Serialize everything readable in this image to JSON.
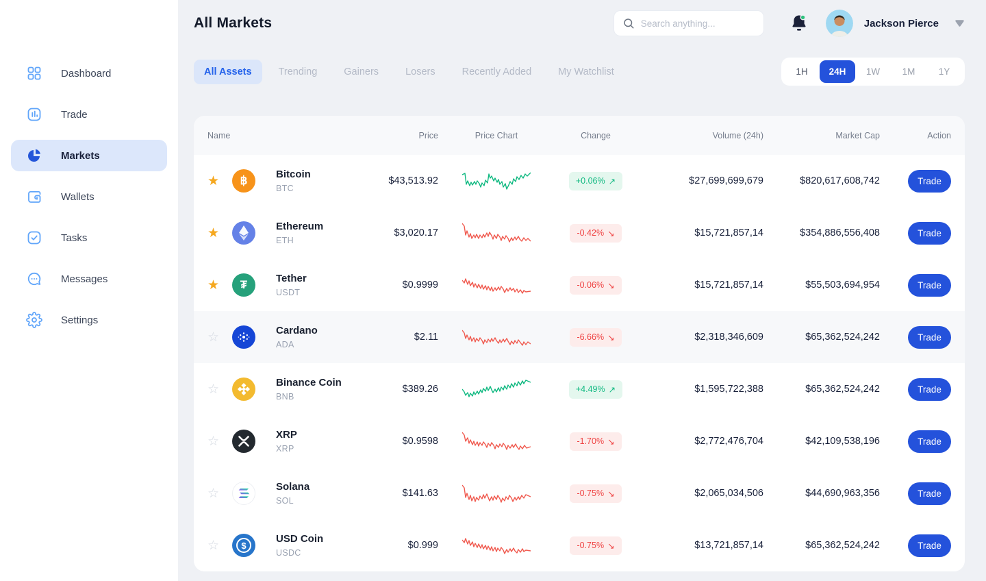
{
  "sidebar": {
    "items": [
      {
        "label": "Dashboard",
        "icon": "dashboard-icon",
        "active": false
      },
      {
        "label": "Trade",
        "icon": "trade-icon",
        "active": false
      },
      {
        "label": "Markets",
        "icon": "markets-icon",
        "active": true
      },
      {
        "label": "Wallets",
        "icon": "wallets-icon",
        "active": false
      },
      {
        "label": "Tasks",
        "icon": "tasks-icon",
        "active": false
      },
      {
        "label": "Messages",
        "icon": "messages-icon",
        "active": false
      },
      {
        "label": "Settings",
        "icon": "settings-icon",
        "active": false
      }
    ]
  },
  "header": {
    "title": "All Markets",
    "search_placeholder": "Search anything...",
    "user_name": "Jackson Pierce",
    "has_unread_notifications": true
  },
  "filters": {
    "tabs": [
      {
        "label": "All Assets",
        "active": true
      },
      {
        "label": "Trending",
        "active": false
      },
      {
        "label": "Gainers",
        "active": false
      },
      {
        "label": "Losers",
        "active": false
      },
      {
        "label": "Recently Added",
        "active": false
      },
      {
        "label": "My Watchlist",
        "active": false
      }
    ],
    "time_ranges": [
      {
        "label": "1H",
        "active": false
      },
      {
        "label": "24H",
        "active": true
      },
      {
        "label": "1W",
        "active": false
      },
      {
        "label": "1M",
        "active": false
      },
      {
        "label": "1Y",
        "active": false
      }
    ]
  },
  "table": {
    "columns": [
      "Name",
      "Price",
      "Price Chart",
      "Change",
      "Volume (24h)",
      "Market Cap",
      "Action"
    ],
    "action_label": "Trade",
    "arrow_up": "↗",
    "arrow_down": "↘",
    "rows": [
      {
        "name": "Bitcoin",
        "symbol": "BTC",
        "favorited": true,
        "highlighted": false,
        "icon": "btc",
        "price": "$43,513.92",
        "change": "+0.06%",
        "direction": "up",
        "volume": "$27,699,699,679",
        "market_cap": "$820,617,608,742",
        "spark": "0,13 4,11 6,27 8,22 11,29 13,24 15,28 18,23 20,27 22,22 25,26 27,31 29,25 32,29 34,21 37,25 39,12 41,18 43,15 46,22 48,18 51,24 53,20 55,27 58,23 60,31 63,26 65,34 68,28 70,23 73,27 75,19 78,23 80,16 83,20 86,14 89,18 92,12 95,15 100,10"
      },
      {
        "name": "Ethereum",
        "symbol": "ETH",
        "favorited": true,
        "highlighted": false,
        "icon": "eth",
        "price": "$3,020.17",
        "change": "-0.42%",
        "direction": "down",
        "volume": "$15,721,857,14",
        "market_cap": "$354,886,556,408",
        "spark": "0,8 3,12 5,25 7,19 10,28 12,23 14,30 17,25 19,29 21,24 24,30 26,25 29,29 31,24 33,28 36,22 38,27 40,21 43,26 45,31 47,25 50,30 52,24 55,28 57,33 59,27 62,31 64,26 67,30 69,35 72,29 74,33 77,28 79,32 82,27 84,31 87,34 90,29 93,33 96,30 100,34"
      },
      {
        "name": "Tether",
        "symbol": "USDT",
        "favorited": true,
        "highlighted": false,
        "icon": "usdt",
        "price": "$0.9999",
        "change": "-0.06%",
        "direction": "down",
        "volume": "$15,721,857,14",
        "market_cap": "$55,503,694,954",
        "spark": "0,15 3,19 5,13 8,21 10,16 12,23 15,18 17,25 19,20 22,26 24,21 27,27 29,22 31,28 34,23 36,29 38,24 41,30 43,25 45,31 48,26 50,30 53,25 55,29 57,24 60,28 62,33 65,27 67,31 70,26 72,30 75,27 77,32 80,28 82,33 85,29 88,34 90,30 93,32 100,31"
      },
      {
        "name": "Cardano",
        "symbol": "ADA",
        "favorited": false,
        "highlighted": true,
        "icon": "ada",
        "price": "$2.11",
        "change": "-6.66%",
        "direction": "down",
        "volume": "$2,318,346,609",
        "market_cap": "$65,362,524,242",
        "spark": "0,12 3,16 5,24 7,19 10,26 12,21 14,28 17,23 19,29 21,24 24,28 26,23 29,27 31,32 33,26 36,30 38,25 41,29 43,24 45,28 48,23 50,27 53,31 55,26 57,30 60,25 62,29 65,24 67,28 70,33 72,28 75,32 77,27 80,31 82,26 85,30 88,34 90,29 93,33 96,29 100,32"
      },
      {
        "name": "Binance Coin",
        "symbol": "BNB",
        "favorited": false,
        "highlighted": false,
        "icon": "bnb",
        "price": "$389.26",
        "change": "+4.49%",
        "direction": "up",
        "volume": "$1,595,722,388",
        "market_cap": "$65,362,524,242",
        "spark": "0,22 3,26 5,31 8,27 10,33 12,28 15,32 17,26 19,30 22,25 24,29 27,23 29,27 31,21 34,25 36,19 38,24 41,18 43,23 45,27 48,22 50,26 53,20 55,25 57,19 60,23 62,17 65,22 67,16 70,20 72,14 75,19 77,13 80,17 82,11 85,16 88,10 90,14 93,9 100,12"
      },
      {
        "name": "XRP",
        "symbol": "XRP",
        "favorited": false,
        "highlighted": false,
        "icon": "xrp",
        "price": "$0.9598",
        "change": "-1.70%",
        "direction": "down",
        "volume": "$2,772,476,704",
        "market_cap": "$42,109,538,196",
        "spark": "0,9 3,13 5,22 8,17 10,25 12,20 15,27 17,22 19,28 22,23 24,29 26,24 29,28 31,23 34,27 36,31 38,25 41,29 43,24 46,28 48,33 50,27 53,31 55,26 58,30 60,25 63,29 65,34 67,28 70,32 73,27 75,31 78,26 80,30 83,34 85,29 88,33 91,28 94,32 100,30"
      },
      {
        "name": "Solana",
        "symbol": "SOL",
        "favorited": false,
        "highlighted": false,
        "icon": "sol",
        "price": "$141.63",
        "change": "-0.75%",
        "direction": "down",
        "volume": "$2,065,034,506",
        "market_cap": "$44,690,963,356",
        "spark": "0,10 3,14 5,28 7,22 10,31 12,25 14,33 17,27 19,34 21,28 24,32 26,26 29,30 31,24 33,29 36,23 38,28 40,33 43,27 45,32 47,26 50,31 52,25 55,30 57,35 59,29 62,33 64,27 67,31 69,25 72,29 74,34 77,28 79,32 82,27 84,31 87,25 90,29 93,24 100,27"
      },
      {
        "name": "USD Coin",
        "symbol": "USDC",
        "favorited": false,
        "highlighted": false,
        "icon": "usdc",
        "price": "$0.999",
        "change": "-0.75%",
        "direction": "down",
        "volume": "$13,721,857,14",
        "market_cap": "$65,362,524,242",
        "spark": "0,14 3,18 5,12 8,20 10,15 12,22 15,17 17,24 19,19 22,25 24,20 27,26 29,21 31,27 34,22 36,28 38,23 41,29 43,24 45,30 48,25 50,31 52,26 55,30 57,25 60,29 62,34 65,28 67,32 70,27 72,31 75,26 77,30 80,33 82,28 85,32 88,27 90,31 93,29 100,30"
      }
    ]
  },
  "colors": {
    "accent_blue": "#2452DB",
    "sidebar_icon_blue": "#60A5FA",
    "active_item_bg": "#DCE7FB",
    "positive": "#10B981",
    "negative": "#EF4444",
    "positive_bg": "#E4F7EE",
    "negative_bg": "#FDECEB",
    "favorite_star": "#F5A820",
    "btc": "#F7931A",
    "eth": "#6481E7",
    "usdt": "#26A17B",
    "ada": "#1546D6",
    "bnb": "#F3BA2F",
    "xrp": "#23292F",
    "sol_grad_start": "#9945FF",
    "sol_grad_end": "#14F195",
    "usdc": "#2775CA"
  }
}
